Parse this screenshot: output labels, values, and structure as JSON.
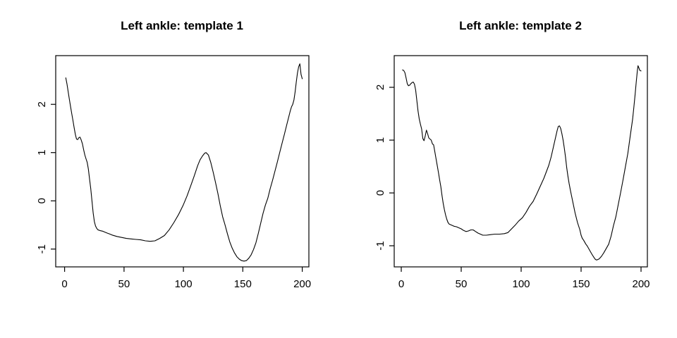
{
  "figure": {
    "background": "#ffffff",
    "line_color": "#000000",
    "text_color": "#000000"
  },
  "chart_data": [
    {
      "type": "line",
      "title": "Left ankle: template 1",
      "xlabel": "",
      "ylabel": "",
      "legend": null,
      "grid": false,
      "xlim": [
        -7.5,
        205.6
      ],
      "ylim": [
        -1.37,
        3.01
      ],
      "xticks": [
        0,
        50,
        100,
        150,
        200
      ],
      "yticks": [
        -1,
        0,
        1,
        2
      ],
      "points": [
        [
          1,
          2.55
        ],
        [
          2,
          2.42
        ],
        [
          3,
          2.26
        ],
        [
          4,
          2.1
        ],
        [
          5,
          1.95
        ],
        [
          6,
          1.81
        ],
        [
          7,
          1.67
        ],
        [
          8,
          1.52
        ],
        [
          9,
          1.38
        ],
        [
          10,
          1.28
        ],
        [
          11,
          1.27
        ],
        [
          12,
          1.31
        ],
        [
          13,
          1.32
        ],
        [
          14,
          1.26
        ],
        [
          15,
          1.18
        ],
        [
          16,
          1.06
        ],
        [
          17,
          0.95
        ],
        [
          18,
          0.87
        ],
        [
          19,
          0.8
        ],
        [
          20,
          0.66
        ],
        [
          21,
          0.45
        ],
        [
          22,
          0.25
        ],
        [
          23,
          0.0
        ],
        [
          24,
          -0.25
        ],
        [
          25,
          -0.43
        ],
        [
          26,
          -0.52
        ],
        [
          27,
          -0.57
        ],
        [
          28,
          -0.6
        ],
        [
          30,
          -0.62
        ],
        [
          32,
          -0.63
        ],
        [
          34,
          -0.65
        ],
        [
          36,
          -0.67
        ],
        [
          38,
          -0.69
        ],
        [
          40,
          -0.71
        ],
        [
          44,
          -0.74
        ],
        [
          48,
          -0.76
        ],
        [
          52,
          -0.78
        ],
        [
          56,
          -0.79
        ],
        [
          60,
          -0.8
        ],
        [
          64,
          -0.81
        ],
        [
          68,
          -0.83
        ],
        [
          72,
          -0.84
        ],
        [
          76,
          -0.83
        ],
        [
          80,
          -0.78
        ],
        [
          84,
          -0.72
        ],
        [
          88,
          -0.6
        ],
        [
          92,
          -0.45
        ],
        [
          96,
          -0.28
        ],
        [
          100,
          -0.08
        ],
        [
          103,
          0.1
        ],
        [
          106,
          0.3
        ],
        [
          109,
          0.51
        ],
        [
          112,
          0.73
        ],
        [
          114,
          0.85
        ],
        [
          116,
          0.93
        ],
        [
          118,
          0.99
        ],
        [
          119,
          1.0
        ],
        [
          121,
          0.95
        ],
        [
          123,
          0.8
        ],
        [
          125,
          0.6
        ],
        [
          127,
          0.38
        ],
        [
          129,
          0.15
        ],
        [
          131,
          -0.1
        ],
        [
          133,
          -0.33
        ],
        [
          135,
          -0.5
        ],
        [
          137,
          -0.68
        ],
        [
          139,
          -0.85
        ],
        [
          141,
          -0.98
        ],
        [
          143,
          -1.08
        ],
        [
          145,
          -1.16
        ],
        [
          147,
          -1.21
        ],
        [
          149,
          -1.24
        ],
        [
          151,
          -1.25
        ],
        [
          153,
          -1.24
        ],
        [
          155,
          -1.19
        ],
        [
          157,
          -1.12
        ],
        [
          159,
          -1.01
        ],
        [
          161,
          -0.87
        ],
        [
          163,
          -0.68
        ],
        [
          165,
          -0.47
        ],
        [
          167,
          -0.26
        ],
        [
          169,
          -0.09
        ],
        [
          171,
          0.05
        ],
        [
          173,
          0.25
        ],
        [
          175,
          0.42
        ],
        [
          177,
          0.61
        ],
        [
          179,
          0.8
        ],
        [
          181,
          1.0
        ],
        [
          183,
          1.19
        ],
        [
          185,
          1.38
        ],
        [
          187,
          1.58
        ],
        [
          189,
          1.77
        ],
        [
          190,
          1.87
        ],
        [
          191,
          1.95
        ],
        [
          192,
          2.0
        ],
        [
          193,
          2.09
        ],
        [
          194,
          2.26
        ],
        [
          195,
          2.46
        ],
        [
          196,
          2.65
        ],
        [
          197,
          2.78
        ],
        [
          198,
          2.84
        ],
        [
          199,
          2.62
        ],
        [
          200,
          2.53
        ]
      ]
    },
    {
      "type": "line",
      "title": "Left ankle: template 2",
      "xlabel": "",
      "ylabel": "",
      "legend": null,
      "grid": false,
      "xlim": [
        -5.9,
        205.3
      ],
      "ylim": [
        -1.4,
        2.6
      ],
      "xticks": [
        0,
        50,
        100,
        150,
        200
      ],
      "yticks": [
        -1,
        0,
        1,
        2
      ],
      "points": [
        [
          1,
          2.33
        ],
        [
          2,
          2.32
        ],
        [
          3,
          2.28
        ],
        [
          4,
          2.18
        ],
        [
          5,
          2.07
        ],
        [
          6,
          2.03
        ],
        [
          7,
          2.04
        ],
        [
          8,
          2.07
        ],
        [
          9,
          2.09
        ],
        [
          10,
          2.1
        ],
        [
          11,
          2.06
        ],
        [
          12,
          1.95
        ],
        [
          13,
          1.75
        ],
        [
          14,
          1.55
        ],
        [
          15,
          1.4
        ],
        [
          16,
          1.3
        ],
        [
          17,
          1.21
        ],
        [
          18,
          1.03
        ],
        [
          19,
          0.99
        ],
        [
          20,
          1.08
        ],
        [
          21,
          1.19
        ],
        [
          22,
          1.12
        ],
        [
          23,
          1.04
        ],
        [
          24,
          1.02
        ],
        [
          25,
          1.0
        ],
        [
          26,
          0.93
        ],
        [
          27,
          0.91
        ],
        [
          28,
          0.78
        ],
        [
          29,
          0.65
        ],
        [
          30,
          0.52
        ],
        [
          31,
          0.39
        ],
        [
          32,
          0.25
        ],
        [
          33,
          0.12
        ],
        [
          34,
          -0.05
        ],
        [
          35,
          -0.2
        ],
        [
          36,
          -0.32
        ],
        [
          37,
          -0.42
        ],
        [
          38,
          -0.5
        ],
        [
          39,
          -0.56
        ],
        [
          40,
          -0.59
        ],
        [
          42,
          -0.61
        ],
        [
          44,
          -0.63
        ],
        [
          46,
          -0.64
        ],
        [
          48,
          -0.66
        ],
        [
          50,
          -0.68
        ],
        [
          52,
          -0.71
        ],
        [
          54,
          -0.73
        ],
        [
          56,
          -0.72
        ],
        [
          58,
          -0.7
        ],
        [
          60,
          -0.7
        ],
        [
          62,
          -0.73
        ],
        [
          64,
          -0.76
        ],
        [
          66,
          -0.78
        ],
        [
          68,
          -0.8
        ],
        [
          71,
          -0.8
        ],
        [
          74,
          -0.79
        ],
        [
          78,
          -0.78
        ],
        [
          82,
          -0.78
        ],
        [
          86,
          -0.77
        ],
        [
          89,
          -0.75
        ],
        [
          92,
          -0.68
        ],
        [
          95,
          -0.61
        ],
        [
          98,
          -0.53
        ],
        [
          101,
          -0.47
        ],
        [
          104,
          -0.37
        ],
        [
          107,
          -0.25
        ],
        [
          110,
          -0.16
        ],
        [
          113,
          -0.02
        ],
        [
          115,
          0.08
        ],
        [
          117,
          0.18
        ],
        [
          119,
          0.28
        ],
        [
          121,
          0.4
        ],
        [
          123,
          0.52
        ],
        [
          125,
          0.68
        ],
        [
          127,
          0.88
        ],
        [
          129,
          1.08
        ],
        [
          130,
          1.18
        ],
        [
          131,
          1.26
        ],
        [
          132,
          1.27
        ],
        [
          133,
          1.22
        ],
        [
          134,
          1.12
        ],
        [
          135,
          1.0
        ],
        [
          136,
          0.85
        ],
        [
          137,
          0.68
        ],
        [
          138,
          0.48
        ],
        [
          139,
          0.32
        ],
        [
          140,
          0.18
        ],
        [
          141,
          0.06
        ],
        [
          142,
          -0.05
        ],
        [
          143,
          -0.16
        ],
        [
          145,
          -0.38
        ],
        [
          147,
          -0.56
        ],
        [
          149,
          -0.7
        ],
        [
          150,
          -0.8
        ],
        [
          151,
          -0.86
        ],
        [
          152,
          -0.89
        ],
        [
          153,
          -0.93
        ],
        [
          154,
          -0.97
        ],
        [
          155,
          -1.0
        ],
        [
          157,
          -1.08
        ],
        [
          159,
          -1.16
        ],
        [
          161,
          -1.23
        ],
        [
          162,
          -1.26
        ],
        [
          163,
          -1.27
        ],
        [
          165,
          -1.25
        ],
        [
          167,
          -1.2
        ],
        [
          169,
          -1.13
        ],
        [
          171,
          -1.05
        ],
        [
          173,
          -0.97
        ],
        [
          175,
          -0.82
        ],
        [
          177,
          -0.62
        ],
        [
          179,
          -0.45
        ],
        [
          181,
          -0.22
        ],
        [
          183,
          0.01
        ],
        [
          185,
          0.25
        ],
        [
          187,
          0.5
        ],
        [
          189,
          0.75
        ],
        [
          191,
          1.08
        ],
        [
          193,
          1.4
        ],
        [
          194,
          1.62
        ],
        [
          195,
          1.85
        ],
        [
          196,
          2.1
        ],
        [
          197,
          2.33
        ],
        [
          197.5,
          2.41
        ],
        [
          198,
          2.38
        ],
        [
          199,
          2.32
        ],
        [
          200,
          2.31
        ]
      ]
    }
  ]
}
